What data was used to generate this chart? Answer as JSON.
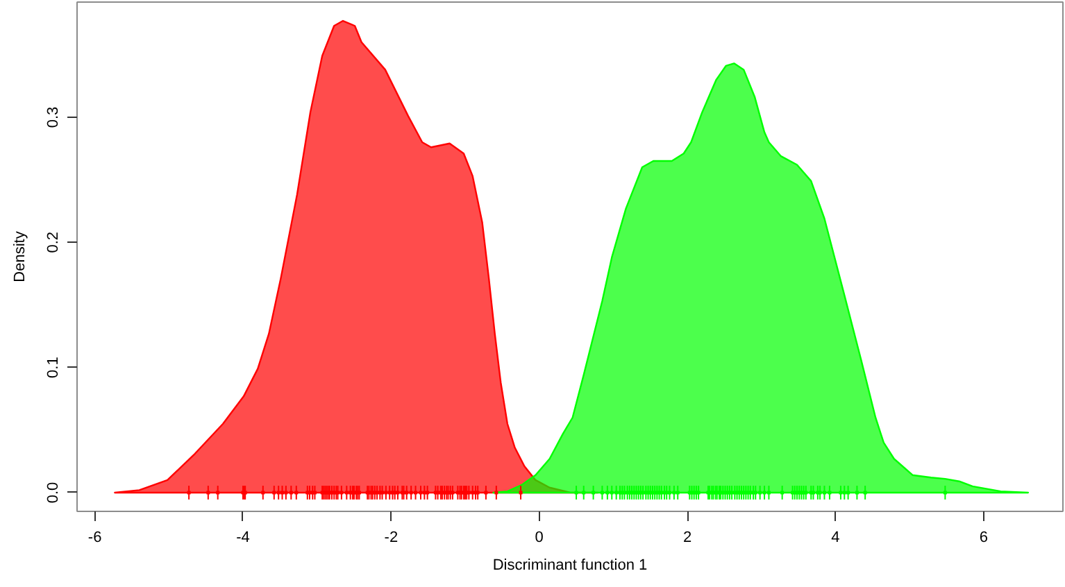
{
  "chart_data": {
    "type": "area",
    "xlabel": "Discriminant function 1",
    "ylabel": "Density",
    "xlim": [
      -6.24,
      7.07
    ],
    "ylim": [
      -0.015,
      0.392
    ],
    "xticks": [
      -6,
      -4,
      -2,
      0,
      2,
      4,
      6
    ],
    "yticks": [
      {
        "value": 0,
        "label": "0.0"
      },
      0.1,
      0.2,
      0.3
    ],
    "grid": false,
    "series": [
      {
        "color": "#ff0000",
        "x": [
          -5.73,
          -5.4,
          -5.02,
          -4.65,
          -4.27,
          -3.99,
          -3.8,
          -3.65,
          -3.49,
          -3.27,
          -3.09,
          -2.93,
          -2.77,
          -2.65,
          -2.49,
          -2.4,
          -2.08,
          -1.77,
          -1.58,
          -1.46,
          -1.21,
          -1.02,
          -0.9,
          -0.77,
          -0.68,
          -0.6,
          -0.52,
          -0.43,
          -0.33,
          -0.2,
          -0.05,
          0.14,
          0.42,
          0.79
        ],
        "values": [
          0,
          0.002,
          0.01,
          0.031,
          0.055,
          0.077,
          0.099,
          0.127,
          0.171,
          0.238,
          0.304,
          0.349,
          0.373,
          0.377,
          0.373,
          0.36,
          0.338,
          0.301,
          0.28,
          0.276,
          0.279,
          0.271,
          0.253,
          0.216,
          0.171,
          0.127,
          0.088,
          0.055,
          0.036,
          0.021,
          0.01,
          0.004,
          0,
          0
        ]
      },
      {
        "color": "#00ff00",
        "x": [
          -0.62,
          -0.43,
          -0.24,
          -0.05,
          0.14,
          0.32,
          0.45,
          0.6,
          0.85,
          0.98,
          1.17,
          1.39,
          1.54,
          1.79,
          1.95,
          2.05,
          2.2,
          2.39,
          2.52,
          2.63,
          2.76,
          2.91,
          3.04,
          3.1,
          3.26,
          3.48,
          3.67,
          3.85,
          4.11,
          4.35,
          4.54,
          4.65,
          4.79,
          5.04,
          5.29,
          5.48,
          5.67,
          5.85,
          6.23,
          6.6
        ],
        "values": [
          0,
          0.001,
          0.006,
          0.014,
          0.027,
          0.047,
          0.06,
          0.094,
          0.153,
          0.188,
          0.227,
          0.26,
          0.265,
          0.265,
          0.271,
          0.28,
          0.304,
          0.33,
          0.341,
          0.343,
          0.338,
          0.316,
          0.288,
          0.28,
          0.269,
          0.262,
          0.249,
          0.219,
          0.16,
          0.105,
          0.06,
          0.04,
          0.027,
          0.014,
          0.012,
          0.011,
          0.009,
          0.005,
          0.001,
          0
        ]
      },
      {
        "type": "scatter",
        "marker": "square",
        "color": "#ff0000",
        "x": [
          -4.73,
          -4.47,
          -4.34,
          -4.0,
          -3.98,
          -3.97,
          -3.73,
          -3.58,
          -3.52,
          -3.47,
          -3.42,
          -3.35,
          -3.28,
          -3.13,
          -3.1,
          -3.06,
          -3.03,
          -2.93,
          -2.91,
          -2.89,
          -2.87,
          -2.85,
          -2.83,
          -2.8,
          -2.77,
          -2.74,
          -2.72,
          -2.67,
          -2.6,
          -2.55,
          -2.52,
          -2.5,
          -2.47,
          -2.45,
          -2.43,
          -2.32,
          -2.3,
          -2.27,
          -2.25,
          -2.22,
          -2.19,
          -2.15,
          -2.12,
          -2.07,
          -2.02,
          -1.98,
          -1.95,
          -1.91,
          -1.85,
          -1.83,
          -1.79,
          -1.73,
          -1.67,
          -1.6,
          -1.55,
          -1.51,
          -1.4,
          -1.37,
          -1.33,
          -1.31,
          -1.28,
          -1.25,
          -1.23,
          -1.2,
          -1.17,
          -1.1,
          -1.07,
          -1.05,
          -1.02,
          -1.0,
          -0.98,
          -0.95,
          -0.9,
          -0.86,
          -0.83,
          -0.72,
          -0.58,
          -0.25
        ],
        "values": [
          0,
          0,
          0,
          0,
          0,
          0,
          0,
          0,
          0,
          0,
          0,
          0,
          0,
          0,
          0,
          0,
          0,
          0,
          0,
          0,
          0,
          0,
          0,
          0,
          0,
          0,
          0,
          0,
          0,
          0,
          0,
          0,
          0,
          0,
          0,
          0,
          0,
          0,
          0,
          0,
          0,
          0,
          0,
          0,
          0,
          0,
          0,
          0,
          0,
          0,
          0,
          0,
          0,
          0,
          0,
          0,
          0,
          0,
          0,
          0,
          0,
          0,
          0,
          0,
          0,
          0,
          0,
          0,
          0,
          0,
          0,
          0,
          0,
          0,
          0,
          0,
          0,
          0
        ],
        "errors": [
          0.0055,
          0.0055,
          0.0055,
          0.0055,
          0.0055,
          0.0055,
          0.0055,
          0.0055,
          0.0055,
          0.0055,
          0.0055,
          0.0055,
          0.0055,
          0.0055,
          0.0055,
          0.0055,
          0.0055,
          0.0055,
          0.0055,
          0.0055,
          0.0055,
          0.0055,
          0.0055,
          0.0055,
          0.0055,
          0.0055,
          0.0055,
          0.0055,
          0.0055,
          0.0055,
          0.0055,
          0.0055,
          0.0055,
          0.0055,
          0.0055,
          0.0055,
          0.0055,
          0.0055,
          0.0055,
          0.0055,
          0.0055,
          0.0055,
          0.0055,
          0.0055,
          0.0055,
          0.0055,
          0.0055,
          0.0055,
          0.0055,
          0.0055,
          0.0055,
          0.0055,
          0.0055,
          0.0055,
          0.0055,
          0.0055,
          0.0055,
          0.0055,
          0.0055,
          0.0055,
          0.0055,
          0.0055,
          0.0055,
          0.0055,
          0.0055,
          0.0055,
          0.0055,
          0.0055,
          0.0055,
          0.0055,
          0.0055,
          0.0055,
          0.0055,
          0.0055,
          0.0055,
          0.0055,
          0.0055,
          0.0055
        ]
      },
      {
        "type": "scatter",
        "marker": "square",
        "color": "#00ff00",
        "x": [
          0.5,
          0.6,
          0.73,
          0.85,
          0.92,
          0.98,
          1.04,
          1.09,
          1.12,
          1.15,
          1.19,
          1.22,
          1.25,
          1.28,
          1.31,
          1.34,
          1.37,
          1.4,
          1.44,
          1.47,
          1.5,
          1.53,
          1.56,
          1.59,
          1.62,
          1.65,
          1.69,
          1.72,
          1.76,
          1.82,
          1.87,
          2.03,
          2.06,
          2.09,
          2.12,
          2.15,
          2.28,
          2.3,
          2.33,
          2.35,
          2.38,
          2.4,
          2.43,
          2.45,
          2.48,
          2.51,
          2.54,
          2.57,
          2.6,
          2.64,
          2.67,
          2.7,
          2.73,
          2.76,
          2.79,
          2.82,
          2.85,
          2.89,
          2.92,
          2.98,
          3.04,
          3.1,
          3.28,
          3.42,
          3.45,
          3.48,
          3.51,
          3.54,
          3.57,
          3.6,
          3.67,
          3.7,
          3.76,
          3.79,
          3.85,
          3.92,
          4.07,
          4.12,
          4.17,
          4.29,
          4.4,
          5.48
        ],
        "values": [
          0,
          0,
          0,
          0,
          0,
          0,
          0,
          0,
          0,
          0,
          0,
          0,
          0,
          0,
          0,
          0,
          0,
          0,
          0,
          0,
          0,
          0,
          0,
          0,
          0,
          0,
          0,
          0,
          0,
          0,
          0,
          0,
          0,
          0,
          0,
          0,
          0,
          0,
          0,
          0,
          0,
          0,
          0,
          0,
          0,
          0,
          0,
          0,
          0,
          0,
          0,
          0,
          0,
          0,
          0,
          0,
          0,
          0,
          0,
          0,
          0,
          0,
          0,
          0,
          0,
          0,
          0,
          0,
          0,
          0,
          0,
          0,
          0,
          0,
          0,
          0,
          0,
          0,
          0,
          0,
          0,
          0
        ],
        "errors": [
          0.0055,
          0.0055,
          0.0055,
          0.0055,
          0.0055,
          0.0055,
          0.0055,
          0.0055,
          0.0055,
          0.0055,
          0.0055,
          0.0055,
          0.0055,
          0.0055,
          0.0055,
          0.0055,
          0.0055,
          0.0055,
          0.0055,
          0.0055,
          0.0055,
          0.0055,
          0.0055,
          0.0055,
          0.0055,
          0.0055,
          0.0055,
          0.0055,
          0.0055,
          0.0055,
          0.0055,
          0.0055,
          0.0055,
          0.0055,
          0.0055,
          0.0055,
          0.0055,
          0.0055,
          0.0055,
          0.0055,
          0.0055,
          0.0055,
          0.0055,
          0.0055,
          0.0055,
          0.0055,
          0.0055,
          0.0055,
          0.0055,
          0.0055,
          0.0055,
          0.0055,
          0.0055,
          0.0055,
          0.0055,
          0.0055,
          0.0055,
          0.0055,
          0.0055,
          0.0055,
          0.0055,
          0.0055,
          0.0055,
          0.0055,
          0.0055,
          0.0055,
          0.0055,
          0.0055,
          0.0055,
          0.0055,
          0.0055,
          0.0055,
          0.0055,
          0.0055,
          0.0055,
          0.0055,
          0.0055,
          0.0055,
          0.0055,
          0.0055,
          0.0055,
          0.0055
        ]
      }
    ]
  }
}
